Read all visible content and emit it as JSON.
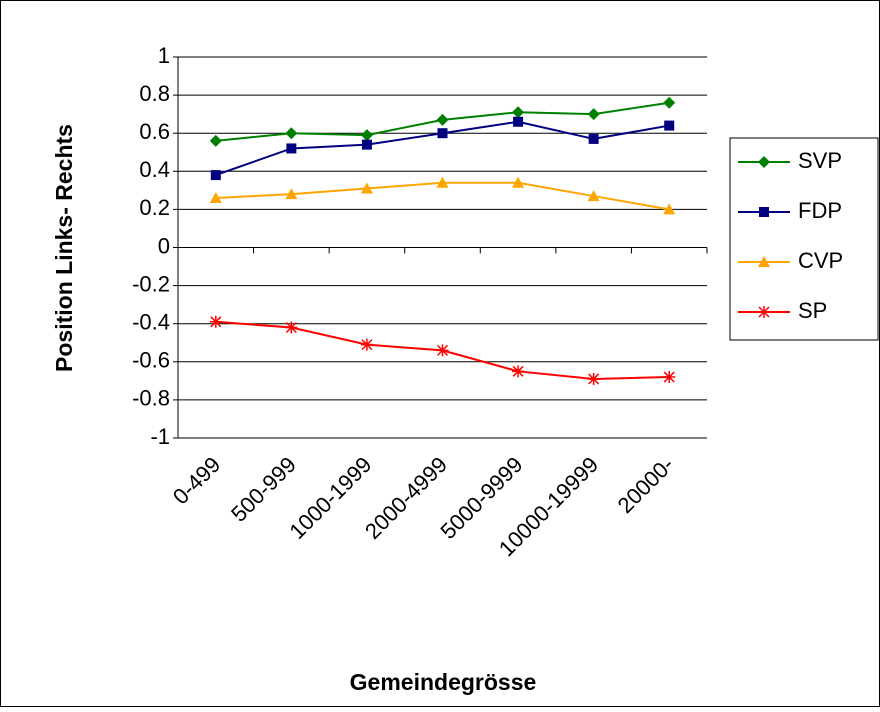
{
  "chart_data": {
    "type": "line",
    "x_label": "Gemeindegrösse",
    "y_label": "Position Links- Rechts",
    "categories": [
      "0-499",
      "500-999",
      "1000-1999",
      "2000-4999",
      "5000-9999",
      "10000-19999",
      "20000-"
    ],
    "series": [
      {
        "name": "SVP",
        "color": "#008000",
        "marker": "diamond",
        "values": [
          0.56,
          0.6,
          0.59,
          0.67,
          0.71,
          0.7,
          0.76
        ]
      },
      {
        "name": "FDP",
        "color": "#000080",
        "marker": "square",
        "values": [
          0.38,
          0.52,
          0.54,
          0.6,
          0.66,
          0.57,
          0.64
        ]
      },
      {
        "name": "CVP",
        "color": "#ffa500",
        "marker": "triangle",
        "values": [
          0.26,
          0.28,
          0.31,
          0.34,
          0.34,
          0.27,
          0.2
        ]
      },
      {
        "name": "SP",
        "color": "#ff0000",
        "marker": "star",
        "values": [
          -0.39,
          -0.42,
          -0.51,
          -0.54,
          -0.65,
          -0.69,
          -0.68
        ]
      }
    ],
    "ylim": [
      -1,
      1
    ],
    "yticks": [
      1,
      0.8,
      0.6,
      0.4,
      0.2,
      0,
      -0.2,
      -0.4,
      -0.6,
      -0.8,
      -1
    ],
    "grid": true,
    "legend": "right"
  }
}
